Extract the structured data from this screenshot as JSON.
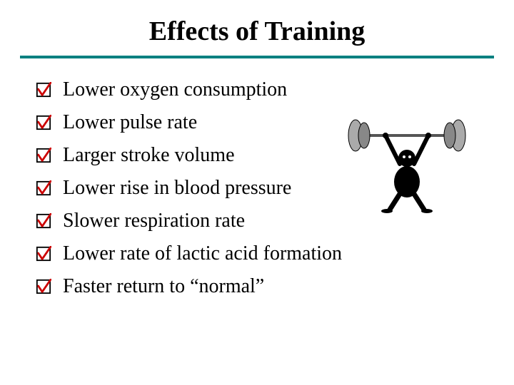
{
  "title": "Effects of Training",
  "divider_color": "#008080",
  "checkbox": {
    "border_color": "#000000",
    "border_width": 2,
    "check_color": "#cc0000",
    "check_stroke": 3
  },
  "items": [
    {
      "label": "Lower oxygen consumption"
    },
    {
      "label": "Lower pulse rate"
    },
    {
      "label": "Larger stroke volume"
    },
    {
      "label": "Lower rise in blood pressure"
    },
    {
      "label": "Slower respiration rate"
    },
    {
      "label": "Lower rate of lactic acid formation"
    },
    {
      "label": "Faster return to “normal”"
    }
  ],
  "graphic": {
    "figure_color": "#000000",
    "bar_color": "#555555",
    "plate_colors": [
      "#888888",
      "#aaaaaa"
    ]
  }
}
